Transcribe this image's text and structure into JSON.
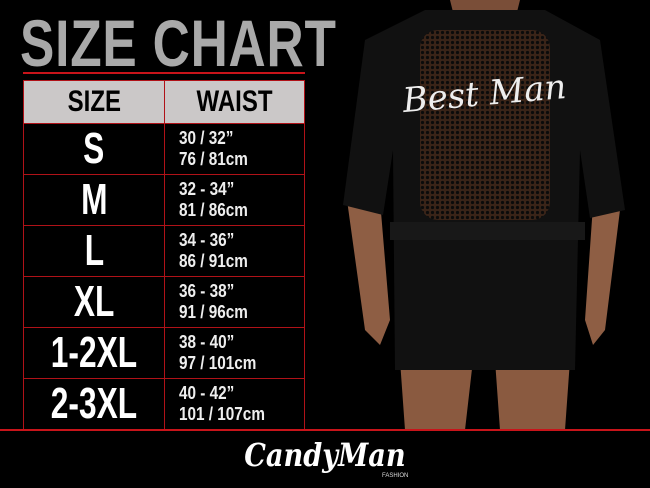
{
  "title": "SIZE CHART",
  "table": {
    "headers": [
      "SIZE",
      "WAIST"
    ],
    "rows": [
      {
        "size": "S",
        "inches": "30 / 32”",
        "cm": "76 / 81cm"
      },
      {
        "size": "M",
        "inches": "32 - 34”",
        "cm": "81 / 86cm"
      },
      {
        "size": "L",
        "inches": "34 - 36”",
        "cm": "86 / 91cm"
      },
      {
        "size": "XL",
        "inches": "36 - 38”",
        "cm": "91 / 96cm"
      },
      {
        "size": "1-2XL",
        "inches": "38 - 40”",
        "cm": "97 / 101cm"
      },
      {
        "size": "2-3XL",
        "inches": "40 - 42”",
        "cm": "101 / 107cm"
      }
    ]
  },
  "garment_text": "Best Man",
  "brand": {
    "name": "CandyMan",
    "sub": "FASHION"
  },
  "colors": {
    "accent": "#c8141a",
    "title": "#a9a9a9",
    "header_bg": "#cbc8c8",
    "background": "#000000"
  }
}
